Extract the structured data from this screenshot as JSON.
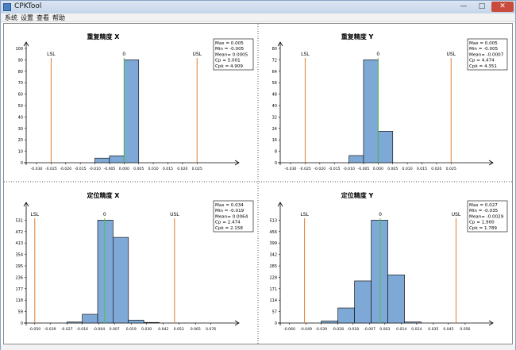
{
  "window": {
    "title": "CPKTool",
    "min_glyph": "—",
    "max_glyph": "□",
    "close_glyph": "✕"
  },
  "menu": {
    "items": [
      "系统",
      "设置",
      "查看",
      "帮助"
    ]
  },
  "colors": {
    "bar_fill": "#7ea9d6",
    "bar_stroke": "#1a1a1a",
    "spec_line": "#e07b2a",
    "center_line": "#4ec24e",
    "axis": "#000000"
  },
  "chart_data": [
    {
      "type": "bar",
      "title": "重复精度 X",
      "categories": [
        -0.0075,
        -0.0025,
        0.0025
      ],
      "values": [
        4,
        6,
        90
      ],
      "bin_width": 0.005,
      "xticks": [
        -0.03,
        -0.025,
        -0.02,
        -0.015,
        -0.01,
        -0.005,
        0.0,
        0.005,
        0.01,
        0.015,
        0.02,
        0.025
      ],
      "xtick_labels": [
        "-0.030",
        "-0.025",
        "-0.020",
        "-0.015",
        "-0.010",
        "-0.005",
        "0.000",
        "0.005",
        "0.010",
        "0.015",
        "0.020",
        "0.025"
      ],
      "xlim": [
        -0.033,
        0.035
      ],
      "yticks": [
        0,
        10,
        20,
        30,
        40,
        50,
        60,
        70,
        80,
        90,
        100
      ],
      "ylim": [
        0,
        100
      ],
      "lsl": -0.025,
      "usl": 0.025,
      "center": 0,
      "spec_labels": {
        "lsl": "LSL",
        "usl": "USL",
        "center": "0"
      },
      "stats": [
        "Max = 0.005",
        "Min = -0.005",
        "Mean= 0.0005",
        "Cp = 5.001",
        "Cpk = 4.909"
      ]
    },
    {
      "type": "bar",
      "title": "重复精度 Y",
      "categories": [
        -0.0075,
        -0.0025,
        0.0025
      ],
      "values": [
        5,
        72,
        22
      ],
      "bin_width": 0.005,
      "xticks": [
        -0.03,
        -0.025,
        -0.02,
        -0.015,
        -0.01,
        -0.005,
        0.0,
        0.005,
        0.01,
        0.015,
        0.02,
        0.025
      ],
      "xtick_labels": [
        "-0.030",
        "-0.025",
        "-0.020",
        "-0.015",
        "-0.010",
        "-0.005",
        "0.000",
        "0.005",
        "0.010",
        "0.015",
        "0.020",
        "0.025"
      ],
      "xlim": [
        -0.033,
        0.035
      ],
      "yticks": [
        0,
        8,
        16,
        24,
        32,
        40,
        48,
        56,
        64,
        72,
        80
      ],
      "ylim": [
        0,
        80
      ],
      "lsl": -0.025,
      "usl": 0.025,
      "center": 0,
      "spec_labels": {
        "lsl": "LSL",
        "usl": "USL",
        "center": "0"
      },
      "stats": [
        "Max = 0.005",
        "Min = -0.005",
        "Mean= -0.0007",
        "Cp = 4.474",
        "Cpk = 4.351"
      ]
    },
    {
      "type": "bar",
      "title": "定位精度 X",
      "categories": [
        -0.0215,
        -0.0105,
        0.0005,
        0.0115,
        0.0225,
        0.0335
      ],
      "values": [
        5,
        45,
        531,
        442,
        15,
        3
      ],
      "bin_width": 0.011,
      "xticks": [
        -0.05,
        -0.039,
        -0.027,
        -0.016,
        -0.004,
        0.007,
        0.019,
        0.03,
        0.042,
        0.053,
        0.065,
        0.076
      ],
      "xtick_labels": [
        "-0.050",
        "-0.039",
        "-0.027",
        "-0.016",
        "-0.004",
        "0.007",
        "0.019",
        "0.030",
        "0.042",
        "0.053",
        "0.065",
        "0.076"
      ],
      "xlim": [
        -0.055,
        0.087
      ],
      "yticks": [
        0,
        59,
        118,
        177,
        236,
        295,
        354,
        413,
        472,
        531
      ],
      "ylim": [
        0,
        590
      ],
      "lsl": -0.05,
      "usl": 0.05,
      "center": 0,
      "spec_labels": {
        "lsl": "LSL",
        "usl": "USL",
        "center": "0"
      },
      "stats": [
        "Max = 0.034",
        "Min = -0.019",
        "Mean= 0.0064",
        "Cp = 2.474",
        "Cpk = 2.158"
      ]
    },
    {
      "type": "bar",
      "title": "定位精度 Y",
      "categories": [
        -0.0335,
        -0.0225,
        -0.0115,
        -0.0005,
        0.0105,
        0.0215
      ],
      "values": [
        10,
        75,
        210,
        513,
        240,
        5
      ],
      "bin_width": 0.011,
      "xticks": [
        -0.06,
        -0.049,
        -0.039,
        -0.028,
        -0.018,
        -0.007,
        0.003,
        0.014,
        0.024,
        0.035,
        0.045,
        0.056
      ],
      "xtick_labels": [
        "-0.060",
        "-0.049",
        "-0.039",
        "-0.028",
        "-0.018",
        "-0.007",
        "0.003",
        "0.014",
        "0.024",
        "0.035",
        "0.045",
        "0.056"
      ],
      "xlim": [
        -0.065,
        0.066
      ],
      "yticks": [
        0,
        57,
        114,
        171,
        228,
        285,
        342,
        399,
        456,
        513
      ],
      "ylim": [
        0,
        570
      ],
      "lsl": -0.05,
      "usl": 0.05,
      "center": 0,
      "spec_labels": {
        "lsl": "LSL",
        "usl": "USL",
        "center": "0"
      },
      "stats": [
        "Max = 0.027",
        "Min = -0.035",
        "Mean= -0.0029",
        "Cp = 1.900",
        "Cpk = 1.789"
      ]
    }
  ]
}
